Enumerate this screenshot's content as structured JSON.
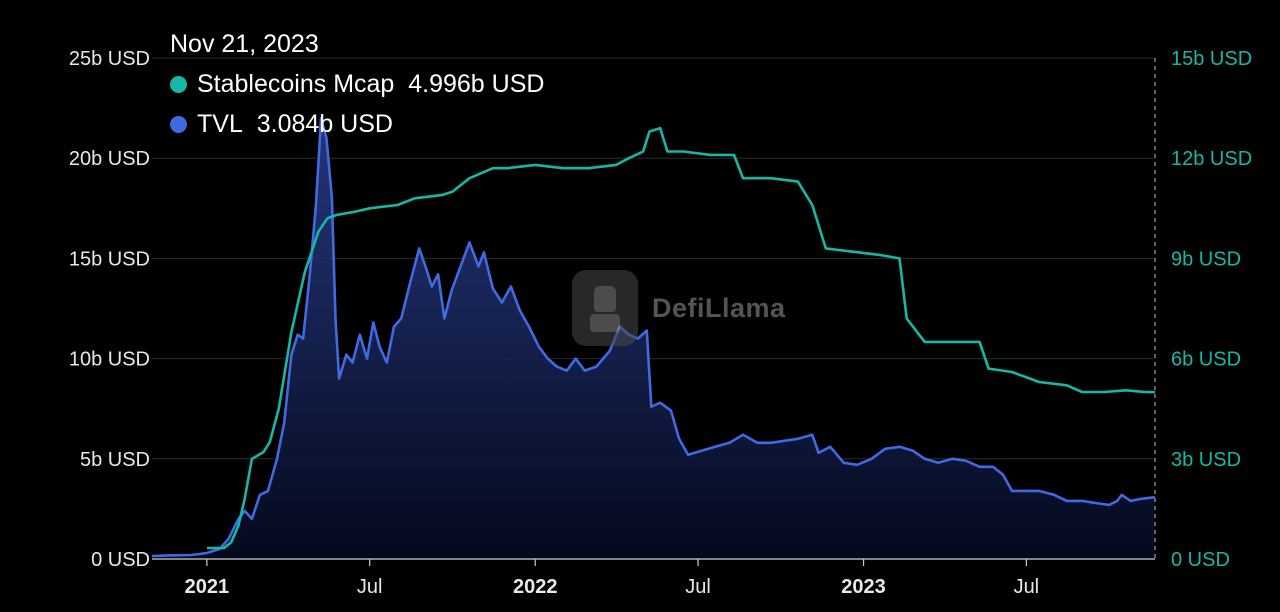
{
  "tooltip": {
    "date": "Nov 21, 2023",
    "rows": [
      {
        "label": "Stablecoins Mcap",
        "value": "4.996b USD",
        "color": "#14b8a6"
      },
      {
        "label": "TVL",
        "value": "3.084b USD",
        "color": "#4169e1"
      }
    ]
  },
  "watermark": "DefiLlama",
  "chart_data": {
    "type": "area",
    "title": "",
    "xlabel": "",
    "ylabel": "",
    "grid": true,
    "x_ticks": [
      {
        "label": "2021",
        "date": "2021-01-01",
        "major": true
      },
      {
        "label": "Jul",
        "date": "2021-07-01",
        "major": false
      },
      {
        "label": "2022",
        "date": "2022-01-01",
        "major": true
      },
      {
        "label": "Jul",
        "date": "2022-07-01",
        "major": false
      },
      {
        "label": "2023",
        "date": "2023-01-01",
        "major": true
      },
      {
        "label": "Jul",
        "date": "2023-07-01",
        "major": false
      }
    ],
    "xlim": [
      "2020-11-01",
      "2023-11-21"
    ],
    "y_left": {
      "ticks": [
        "0 USD",
        "5b USD",
        "10b USD",
        "15b USD",
        "20b USD",
        "25b USD"
      ],
      "values": [
        0,
        5,
        10,
        15,
        20,
        25
      ],
      "ylim": [
        0,
        25
      ]
    },
    "y_right": {
      "ticks": [
        "0 USD",
        "3b USD",
        "6b USD",
        "9b USD",
        "12b USD",
        "15b USD"
      ],
      "values": [
        0,
        3,
        6,
        9,
        12,
        15
      ],
      "ylim": [
        0,
        15
      ]
    },
    "series": [
      {
        "name": "TVL",
        "axis": "left",
        "color": "#4169e1",
        "unit": "b USD",
        "points": [
          [
            "2020-11-01",
            0.15
          ],
          [
            "2020-11-20",
            0.18
          ],
          [
            "2020-12-15",
            0.2
          ],
          [
            "2021-01-01",
            0.3
          ],
          [
            "2021-01-15",
            0.5
          ],
          [
            "2021-01-25",
            1.0
          ],
          [
            "2021-02-05",
            2.0
          ],
          [
            "2021-02-12",
            2.4
          ],
          [
            "2021-02-20",
            2.0
          ],
          [
            "2021-03-01",
            3.2
          ],
          [
            "2021-03-10",
            3.4
          ],
          [
            "2021-03-20",
            5.0
          ],
          [
            "2021-03-28",
            6.8
          ],
          [
            "2021-04-05",
            10.2
          ],
          [
            "2021-04-12",
            11.2
          ],
          [
            "2021-04-18",
            11.0
          ],
          [
            "2021-04-25",
            14.0
          ],
          [
            "2021-05-02",
            17.5
          ],
          [
            "2021-05-08",
            22.0
          ],
          [
            "2021-05-14",
            21.0
          ],
          [
            "2021-05-20",
            18.0
          ],
          [
            "2021-05-24",
            12.0
          ],
          [
            "2021-05-28",
            9.0
          ],
          [
            "2021-06-05",
            10.2
          ],
          [
            "2021-06-12",
            9.8
          ],
          [
            "2021-06-20",
            11.2
          ],
          [
            "2021-06-28",
            10.0
          ],
          [
            "2021-07-05",
            11.8
          ],
          [
            "2021-07-12",
            10.6
          ],
          [
            "2021-07-20",
            9.8
          ],
          [
            "2021-07-28",
            11.6
          ],
          [
            "2021-08-05",
            12.0
          ],
          [
            "2021-08-15",
            13.8
          ],
          [
            "2021-08-25",
            15.5
          ],
          [
            "2021-09-01",
            14.6
          ],
          [
            "2021-09-08",
            13.6
          ],
          [
            "2021-09-15",
            14.2
          ],
          [
            "2021-09-22",
            12.0
          ],
          [
            "2021-09-30",
            13.4
          ],
          [
            "2021-10-10",
            14.6
          ],
          [
            "2021-10-20",
            15.8
          ],
          [
            "2021-10-30",
            14.6
          ],
          [
            "2021-11-05",
            15.3
          ],
          [
            "2021-11-15",
            13.5
          ],
          [
            "2021-11-25",
            12.8
          ],
          [
            "2021-12-05",
            13.6
          ],
          [
            "2021-12-15",
            12.4
          ],
          [
            "2021-12-25",
            11.6
          ],
          [
            "2022-01-05",
            10.6
          ],
          [
            "2022-01-15",
            10.0
          ],
          [
            "2022-01-25",
            9.6
          ],
          [
            "2022-02-05",
            9.4
          ],
          [
            "2022-02-15",
            10.0
          ],
          [
            "2022-02-25",
            9.4
          ],
          [
            "2022-03-10",
            9.6
          ],
          [
            "2022-03-25",
            10.4
          ],
          [
            "2022-04-05",
            11.6
          ],
          [
            "2022-04-15",
            11.2
          ],
          [
            "2022-04-25",
            11.0
          ],
          [
            "2022-05-05",
            11.4
          ],
          [
            "2022-05-10",
            7.6
          ],
          [
            "2022-05-20",
            7.8
          ],
          [
            "2022-06-01",
            7.4
          ],
          [
            "2022-06-10",
            6.0
          ],
          [
            "2022-06-20",
            5.2
          ],
          [
            "2022-07-05",
            5.4
          ],
          [
            "2022-07-20",
            5.6
          ],
          [
            "2022-08-05",
            5.8
          ],
          [
            "2022-08-20",
            6.2
          ],
          [
            "2022-09-05",
            5.8
          ],
          [
            "2022-09-20",
            5.8
          ],
          [
            "2022-10-05",
            5.9
          ],
          [
            "2022-10-20",
            6.0
          ],
          [
            "2022-11-05",
            6.2
          ],
          [
            "2022-11-12",
            5.3
          ],
          [
            "2022-11-25",
            5.6
          ],
          [
            "2022-12-10",
            4.8
          ],
          [
            "2022-12-25",
            4.7
          ],
          [
            "2023-01-10",
            5.0
          ],
          [
            "2023-01-25",
            5.5
          ],
          [
            "2023-02-10",
            5.6
          ],
          [
            "2023-02-25",
            5.4
          ],
          [
            "2023-03-10",
            5.0
          ],
          [
            "2023-03-25",
            4.8
          ],
          [
            "2023-04-10",
            5.0
          ],
          [
            "2023-04-25",
            4.9
          ],
          [
            "2023-05-10",
            4.6
          ],
          [
            "2023-05-25",
            4.6
          ],
          [
            "2023-06-05",
            4.2
          ],
          [
            "2023-06-15",
            3.4
          ],
          [
            "2023-07-01",
            3.4
          ],
          [
            "2023-07-15",
            3.4
          ],
          [
            "2023-08-01",
            3.2
          ],
          [
            "2023-08-15",
            2.9
          ],
          [
            "2023-09-01",
            2.9
          ],
          [
            "2023-09-15",
            2.8
          ],
          [
            "2023-10-01",
            2.7
          ],
          [
            "2023-10-10",
            2.9
          ],
          [
            "2023-10-15",
            3.2
          ],
          [
            "2023-10-25",
            2.9
          ],
          [
            "2023-11-05",
            3.0
          ],
          [
            "2023-11-21",
            3.084
          ]
        ]
      },
      {
        "name": "Stablecoins Mcap",
        "axis": "right",
        "color": "#14b8a6",
        "unit": "b USD",
        "points": [
          [
            "2021-01-01",
            0.33
          ],
          [
            "2021-01-20",
            0.33
          ],
          [
            "2021-01-28",
            0.5
          ],
          [
            "2021-02-05",
            1.0
          ],
          [
            "2021-02-12",
            1.8
          ],
          [
            "2021-02-20",
            3.0
          ],
          [
            "2021-03-05",
            3.2
          ],
          [
            "2021-03-12",
            3.5
          ],
          [
            "2021-03-22",
            4.5
          ],
          [
            "2021-04-05",
            6.8
          ],
          [
            "2021-04-20",
            8.6
          ],
          [
            "2021-05-05",
            9.8
          ],
          [
            "2021-05-15",
            10.2
          ],
          [
            "2021-05-25",
            10.3
          ],
          [
            "2021-06-15",
            10.4
          ],
          [
            "2021-07-01",
            10.5
          ],
          [
            "2021-08-01",
            10.6
          ],
          [
            "2021-08-20",
            10.8
          ],
          [
            "2021-09-20",
            10.9
          ],
          [
            "2021-10-01",
            11.0
          ],
          [
            "2021-10-20",
            11.4
          ],
          [
            "2021-11-15",
            11.7
          ],
          [
            "2021-12-01",
            11.7
          ],
          [
            "2022-01-01",
            11.8
          ],
          [
            "2022-02-01",
            11.7
          ],
          [
            "2022-03-01",
            11.7
          ],
          [
            "2022-04-01",
            11.8
          ],
          [
            "2022-04-15",
            12.0
          ],
          [
            "2022-05-01",
            12.2
          ],
          [
            "2022-05-08",
            12.8
          ],
          [
            "2022-05-20",
            12.9
          ],
          [
            "2022-05-28",
            12.2
          ],
          [
            "2022-06-15",
            12.2
          ],
          [
            "2022-07-15",
            12.1
          ],
          [
            "2022-08-10",
            12.1
          ],
          [
            "2022-08-20",
            11.4
          ],
          [
            "2022-09-20",
            11.4
          ],
          [
            "2022-10-20",
            11.3
          ],
          [
            "2022-11-05",
            10.6
          ],
          [
            "2022-11-20",
            9.3
          ],
          [
            "2022-12-20",
            9.2
          ],
          [
            "2023-01-20",
            9.1
          ],
          [
            "2023-02-10",
            9.0
          ],
          [
            "2023-02-18",
            7.2
          ],
          [
            "2023-03-10",
            6.5
          ],
          [
            "2023-04-10",
            6.5
          ],
          [
            "2023-05-10",
            6.5
          ],
          [
            "2023-05-20",
            5.7
          ],
          [
            "2023-06-15",
            5.6
          ],
          [
            "2023-07-05",
            5.4
          ],
          [
            "2023-07-15",
            5.3
          ],
          [
            "2023-08-15",
            5.2
          ],
          [
            "2023-09-01",
            5.0
          ],
          [
            "2023-09-25",
            5.0
          ],
          [
            "2023-10-20",
            5.05
          ],
          [
            "2023-11-10",
            5.0
          ],
          [
            "2023-11-21",
            4.996
          ]
        ]
      }
    ]
  }
}
